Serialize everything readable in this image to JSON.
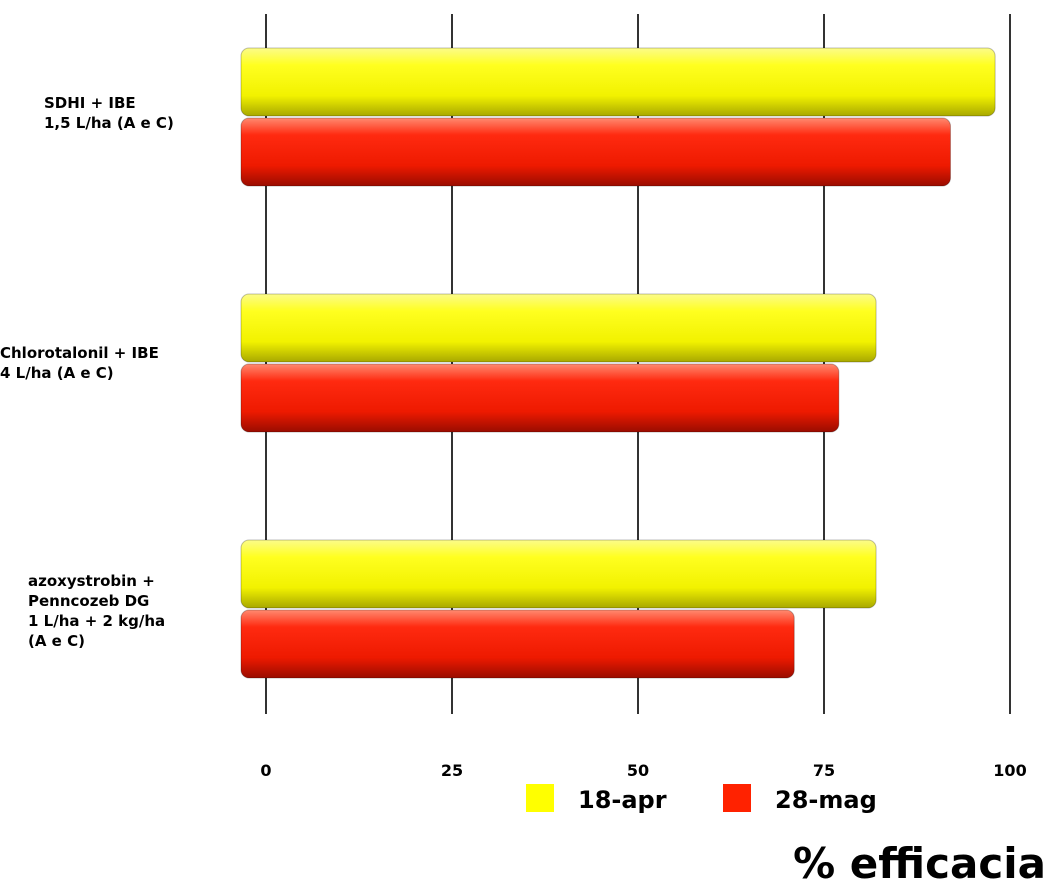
{
  "chart_data": {
    "type": "bar",
    "orientation": "horizontal",
    "categories": [
      [
        "SDHI + IBE",
        "1,5 L/ha (A e C)"
      ],
      [
        "Chlorotalonil + IBE",
        "4 L/ha (A e C)"
      ],
      [
        "azoxystrobin +",
        "Penncozeb DG",
        "1 L/ha + 2 kg/ha",
        "(A e C)"
      ]
    ],
    "series": [
      {
        "name": "18-apr",
        "color": "#ffff00",
        "values": [
          98,
          82,
          82
        ]
      },
      {
        "name": "28-mag",
        "color": "#ff2200",
        "values": [
          92,
          77,
          71
        ]
      }
    ],
    "xlabel": "% efficacia",
    "xlim": [
      0,
      100
    ],
    "xticks": [
      "0",
      "25",
      "50",
      "75",
      "100"
    ],
    "grid": true,
    "legend_position": "bottom-center"
  }
}
